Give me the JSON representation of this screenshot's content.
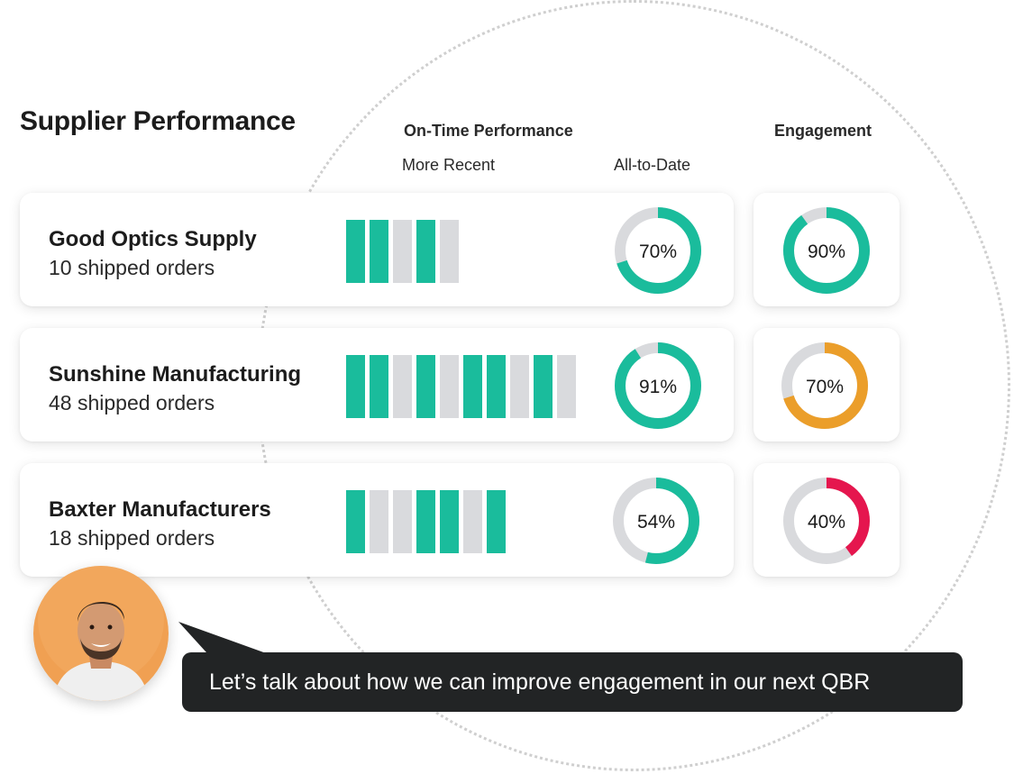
{
  "title": "Supplier Performance",
  "headers": {
    "on_time": "On-Time Performance",
    "more_recent": "More Recent",
    "all_to_date": "All-to-Date",
    "engagement": "Engagement"
  },
  "suppliers": [
    {
      "name": "Good Optics Supply",
      "orders": "10 shipped orders",
      "recent": [
        1,
        1,
        0,
        1,
        0
      ],
      "all_to_date": {
        "value": 70,
        "label": "70%"
      },
      "engagement": {
        "value": 90,
        "label": "90%",
        "color": "#1abc9c"
      }
    },
    {
      "name": "Sunshine Manufacturing",
      "orders": "48 shipped orders",
      "recent": [
        1,
        1,
        0,
        1,
        0,
        1,
        1,
        0,
        1,
        0
      ],
      "all_to_date": {
        "value": 91,
        "label": "91%"
      },
      "engagement": {
        "value": 70,
        "label": "70%",
        "color": "#eb9e2a"
      }
    },
    {
      "name": "Baxter Manufacturers",
      "orders": "18 shipped orders",
      "recent": [
        1,
        0,
        0,
        1,
        1,
        0,
        1
      ],
      "all_to_date": {
        "value": 54,
        "label": "54%"
      },
      "engagement": {
        "value": 40,
        "label": "40%",
        "color": "#e5164e"
      }
    }
  ],
  "colors": {
    "on_time": "#1abc9c",
    "neutral": "#d9dadd"
  },
  "chat": {
    "message": "Let’s talk about how we can improve engagement in our next QBR",
    "avatar_icon": "person-avatar"
  }
}
